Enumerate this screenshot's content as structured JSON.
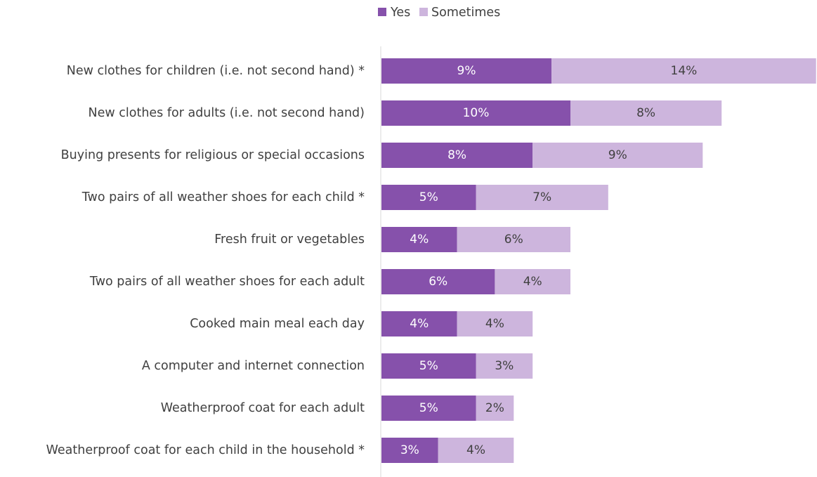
{
  "chart_data": {
    "type": "bar",
    "orientation": "horizontal",
    "stacked": true,
    "categories": [
      "New clothes for children (i.e. not second hand) *",
      "New clothes for adults (i.e. not second hand)",
      "Buying presents for religious or special occasions",
      "Two pairs of all weather shoes for each child *",
      "Fresh fruit or vegetables",
      "Two pairs of all weather shoes for each adult",
      "Cooked main meal each day",
      "A computer and internet connection",
      "Weatherproof coat for each adult",
      "Weatherproof coat for each child in the household *"
    ],
    "series": [
      {
        "name": "Yes",
        "color": "#8651AB",
        "values": [
          9,
          10,
          8,
          5,
          4,
          6,
          4,
          5,
          5,
          3
        ],
        "labels": [
          "9%",
          "10%",
          "8%",
          "5%",
          "4%",
          "6%",
          "4%",
          "5%",
          "5%",
          "3%"
        ]
      },
      {
        "name": "Sometimes",
        "color": "#CDB5DD",
        "values": [
          14,
          8,
          9,
          7,
          6,
          4,
          4,
          3,
          2,
          4
        ],
        "labels": [
          "14%",
          "8%",
          "9%",
          "7%",
          "6%",
          "4%",
          "4%",
          "3%",
          "2%",
          "4%"
        ]
      }
    ],
    "legend_position": "top",
    "grid": false,
    "axis_visible": false
  }
}
